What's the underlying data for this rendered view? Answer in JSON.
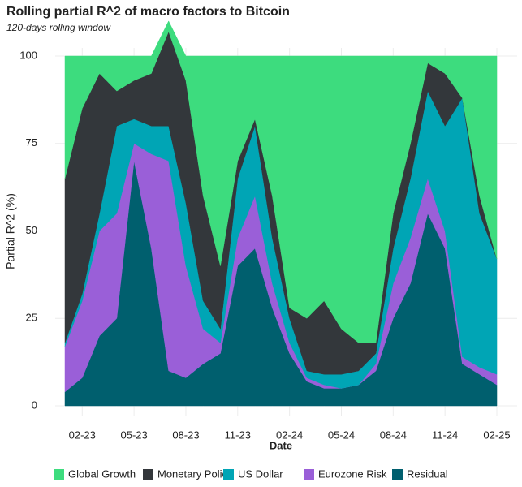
{
  "chart_data": {
    "type": "stacked_area",
    "title": "Rolling partial R^2 of macro factors to Bitcoin",
    "subtitle": "120-days rolling window",
    "xlabel": "Date",
    "ylabel": "Partial R^2 (%)",
    "x": [
      "2023-01",
      "2023-02",
      "2023-03",
      "2023-04",
      "2023-05",
      "2023-06",
      "2023-07",
      "2023-08",
      "2023-09",
      "2023-10",
      "2023-11",
      "2023-12",
      "2024-01",
      "2024-02",
      "2024-03",
      "2024-04",
      "2024-05",
      "2024-06",
      "2024-07",
      "2024-08",
      "2024-09",
      "2024-10",
      "2024-11",
      "2024-12",
      "2025-01",
      "2025-02"
    ],
    "xlim": [
      "2023-01",
      "2025-02"
    ],
    "xticks": [
      {
        "value": "2023-02",
        "label": "02-23"
      },
      {
        "value": "2023-05",
        "label": "05-23"
      },
      {
        "value": "2023-08",
        "label": "08-23"
      },
      {
        "value": "2023-11",
        "label": "11-23"
      },
      {
        "value": "2024-02",
        "label": "02-24"
      },
      {
        "value": "2024-05",
        "label": "05-24"
      },
      {
        "value": "2024-08",
        "label": "08-24"
      },
      {
        "value": "2024-11",
        "label": "11-24"
      },
      {
        "value": "2025-02",
        "label": "02-25"
      }
    ],
    "ylim": [
      0,
      100
    ],
    "yticks": [
      0,
      25,
      50,
      75,
      100
    ],
    "grid": true,
    "legend": "bottom",
    "series": [
      {
        "name": "Global Growth",
        "color": "#3ddc7e",
        "values": [
          35,
          15,
          5,
          10,
          7,
          5,
          3,
          7,
          40,
          60,
          30,
          18,
          40,
          72,
          75,
          70,
          78,
          82,
          82,
          45,
          25,
          2,
          5,
          12,
          40,
          58
        ]
      },
      {
        "name": "Monetary Policy",
        "color": "#33373b",
        "values": [
          47,
          53,
          40,
          10,
          11,
          15,
          27,
          35,
          30,
          18,
          5,
          2,
          12,
          3,
          15,
          21,
          13,
          8,
          3,
          10,
          10,
          8,
          15,
          0,
          5,
          0
        ]
      },
      {
        "name": "US Dollar",
        "color": "#00a5b5",
        "values": [
          1,
          2,
          5,
          25,
          7,
          8,
          10,
          18,
          8,
          4,
          17,
          20,
          13,
          7,
          2,
          3,
          4,
          4,
          3,
          10,
          17,
          25,
          30,
          74,
          44,
          33
        ]
      },
      {
        "name": "Eurozone Risk",
        "color": "#9a5fd8",
        "values": [
          13,
          22,
          30,
          30,
          5,
          27,
          60,
          32,
          10,
          3,
          8,
          15,
          7,
          3,
          1,
          1,
          0,
          0,
          2,
          10,
          13,
          10,
          5,
          2,
          2,
          3
        ]
      },
      {
        "name": "Residual",
        "color": "#005f6e",
        "values": [
          4,
          8,
          20,
          25,
          70,
          45,
          10,
          8,
          12,
          15,
          40,
          45,
          28,
          15,
          7,
          5,
          5,
          6,
          10,
          25,
          35,
          55,
          45,
          12,
          9,
          6
        ]
      }
    ]
  }
}
